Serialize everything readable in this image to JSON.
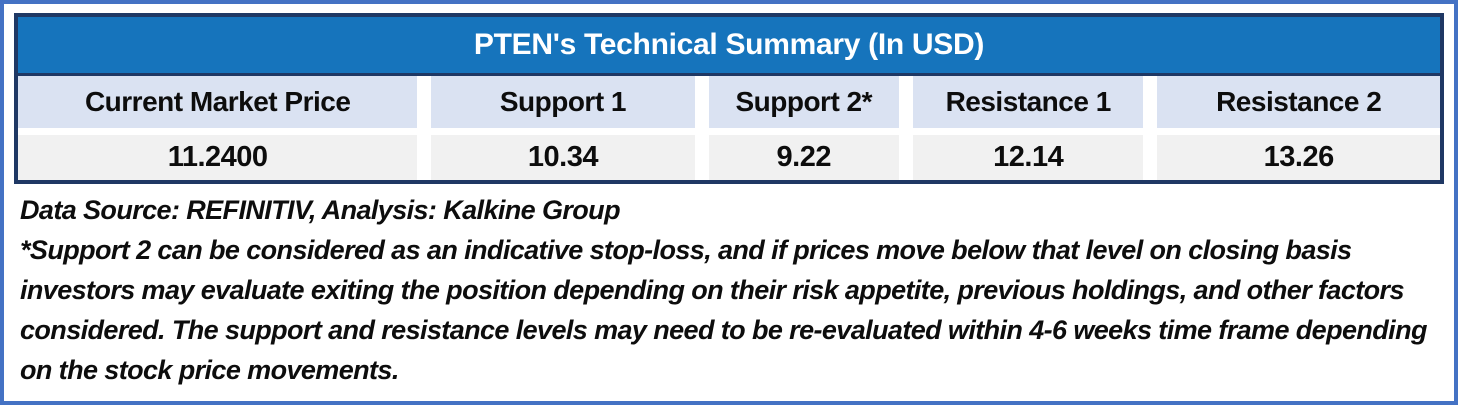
{
  "title": "PTEN's Technical Summary (In USD)",
  "table": {
    "columns": [
      {
        "label": "Current Market Price",
        "value": "11.2400"
      },
      {
        "label": "Support 1",
        "value": "10.34"
      },
      {
        "label": "Support 2*",
        "value": "9.22"
      },
      {
        "label": "Resistance 1",
        "value": "12.14"
      },
      {
        "label": "Resistance 2",
        "value": "13.26"
      }
    ]
  },
  "footnotes": {
    "source": "Data Source: REFINITIV, Analysis: Kalkine Group",
    "disclaimer": "*Support 2 can be considered as an indicative stop-loss, and if prices move below that level on closing basis investors may evaluate exiting the position depending on their risk appetite, previous holdings, and other factors considered. The support and resistance levels may need to be re-evaluated within 4-6 weeks time frame depending on the stock price movements."
  },
  "colors": {
    "title_bg": "#1674BC",
    "header_bg": "#DAE2F2",
    "value_bg": "#F1F1F1",
    "table_border": "#1F3864",
    "outer_border": "#4472C4"
  },
  "chart_data": {
    "type": "table",
    "title": "PTEN's Technical Summary (In USD)",
    "columns": [
      "Current Market Price",
      "Support 1",
      "Support 2*",
      "Resistance 1",
      "Resistance 2"
    ],
    "rows": [
      [
        "11.2400",
        "10.34",
        "9.22",
        "12.14",
        "13.26"
      ]
    ],
    "annotations": [
      "Data Source: REFINITIV, Analysis: Kalkine Group",
      "*Support 2 can be considered as an indicative stop-loss, and if prices move below that level on closing basis investors may evaluate exiting the position depending on their risk appetite, previous holdings, and other factors considered. The support and resistance levels may need to be re-evaluated within 4-6 weeks time frame depending on the stock price movements."
    ]
  }
}
